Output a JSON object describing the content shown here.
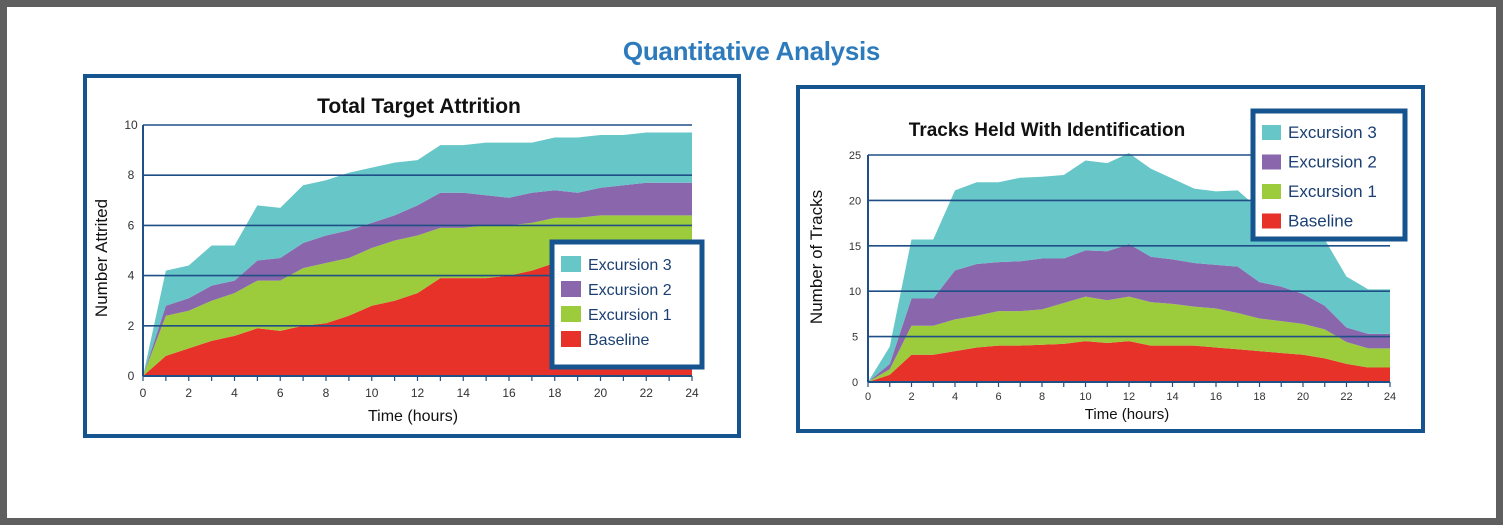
{
  "page": {
    "title": "Quantitative Analysis"
  },
  "colors": {
    "panel_border": "#16548f",
    "grid": "#1f4f86",
    "baseline": "#e63228",
    "excursion1": "#9ccb3c",
    "excursion2": "#8a67ad",
    "excursion3": "#66c6c8",
    "title_blue": "#2d7bbd"
  },
  "chart_data": [
    {
      "type": "area",
      "stacked": true,
      "title": "Total Target Attrition",
      "xlabel": "Time (hours)",
      "ylabel": "Number Attrited",
      "xlim": [
        0,
        24
      ],
      "ylim": [
        0,
        10
      ],
      "x_ticks": [
        0,
        2,
        4,
        6,
        8,
        10,
        12,
        14,
        16,
        18,
        20,
        22,
        24
      ],
      "y_ticks": [
        0,
        2,
        4,
        6,
        8,
        10
      ],
      "gridlines": [
        2,
        4,
        6,
        8,
        10
      ],
      "legend": {
        "position": "right-middle",
        "entries": [
          "Excursion 3",
          "Excursion 2",
          "Excursion 1",
          "Baseline"
        ]
      },
      "x": [
        0,
        1,
        2,
        3,
        4,
        5,
        6,
        7,
        8,
        9,
        10,
        11,
        12,
        13,
        14,
        15,
        16,
        17,
        18,
        19,
        20,
        21,
        22,
        23,
        24
      ],
      "series": [
        {
          "name": "Baseline",
          "values": [
            0,
            0.8,
            1.1,
            1.4,
            1.6,
            1.9,
            1.8,
            2.0,
            2.1,
            2.4,
            2.8,
            3.0,
            3.3,
            3.9,
            3.9,
            3.9,
            4.0,
            4.2,
            4.5,
            4.5,
            4.5,
            4.5,
            4.6,
            4.6,
            4.6
          ]
        },
        {
          "name": "Excursion 1",
          "values": [
            0,
            1.6,
            1.5,
            1.6,
            1.7,
            1.9,
            2.0,
            2.3,
            2.4,
            2.3,
            2.3,
            2.4,
            2.3,
            2.0,
            2.0,
            2.1,
            2.0,
            1.9,
            1.8,
            1.8,
            1.9,
            1.9,
            1.8,
            1.8,
            1.8
          ]
        },
        {
          "name": "Excursion 2",
          "values": [
            0,
            0.4,
            0.5,
            0.6,
            0.5,
            0.8,
            0.9,
            1.0,
            1.1,
            1.1,
            1.0,
            1.0,
            1.2,
            1.4,
            1.4,
            1.2,
            1.1,
            1.2,
            1.1,
            1.0,
            1.1,
            1.2,
            1.3,
            1.3,
            1.3
          ]
        },
        {
          "name": "Excursion 3",
          "values": [
            0,
            1.4,
            1.3,
            1.6,
            1.4,
            2.2,
            2.0,
            2.3,
            2.2,
            2.3,
            2.2,
            2.1,
            1.8,
            1.9,
            1.9,
            2.1,
            2.2,
            2.0,
            2.1,
            2.2,
            2.1,
            2.0,
            2.0,
            2.0,
            2.0
          ]
        }
      ]
    },
    {
      "type": "area",
      "stacked": true,
      "title": "Tracks Held With Identification",
      "xlabel": "Time (hours)",
      "ylabel": "Number of Tracks",
      "xlim": [
        0,
        24
      ],
      "ylim": [
        0,
        25
      ],
      "x_ticks": [
        0,
        2,
        4,
        6,
        8,
        10,
        12,
        14,
        16,
        18,
        20,
        22,
        24
      ],
      "y_ticks": [
        0,
        5,
        10,
        15,
        20,
        25
      ],
      "gridlines": [
        5,
        10,
        15,
        20,
        25
      ],
      "legend": {
        "position": "top-right",
        "entries": [
          "Excursion 3",
          "Excursion 2",
          "Excursion 1",
          "Baseline"
        ]
      },
      "x": [
        0,
        1,
        2,
        3,
        4,
        5,
        6,
        7,
        8,
        9,
        10,
        11,
        12,
        13,
        14,
        15,
        16,
        17,
        18,
        19,
        20,
        21,
        22,
        23,
        24
      ],
      "series": [
        {
          "name": "Baseline",
          "values": [
            0,
            0.8,
            3.0,
            3.0,
            3.4,
            3.8,
            4.0,
            4.0,
            4.1,
            4.2,
            4.5,
            4.3,
            4.5,
            4.0,
            4.0,
            4.0,
            3.8,
            3.6,
            3.4,
            3.2,
            3.0,
            2.6,
            2.0,
            1.6,
            1.6
          ]
        },
        {
          "name": "Excursion 1",
          "values": [
            0,
            0.6,
            3.2,
            3.2,
            3.5,
            3.5,
            3.8,
            3.8,
            3.9,
            4.5,
            4.9,
            4.7,
            4.9,
            4.8,
            4.6,
            4.3,
            4.3,
            4.0,
            3.6,
            3.5,
            3.4,
            3.2,
            2.4,
            2.1,
            2.1
          ]
        },
        {
          "name": "Excursion 2",
          "values": [
            0,
            0.6,
            3.0,
            3.0,
            5.4,
            5.7,
            5.4,
            5.5,
            5.6,
            4.9,
            5.1,
            5.4,
            5.8,
            5.0,
            4.9,
            4.8,
            4.8,
            5.1,
            4.0,
            3.8,
            3.3,
            2.6,
            1.6,
            1.6,
            1.6
          ]
        },
        {
          "name": "Excursion 3",
          "values": [
            0,
            1.9,
            6.5,
            6.5,
            8.8,
            9.0,
            8.8,
            9.2,
            9.0,
            9.2,
            9.9,
            9.7,
            10.0,
            9.7,
            8.9,
            8.2,
            8.1,
            8.4,
            8.0,
            9.7,
            6.9,
            7.3,
            5.6,
            4.9,
            4.9
          ]
        }
      ]
    }
  ]
}
